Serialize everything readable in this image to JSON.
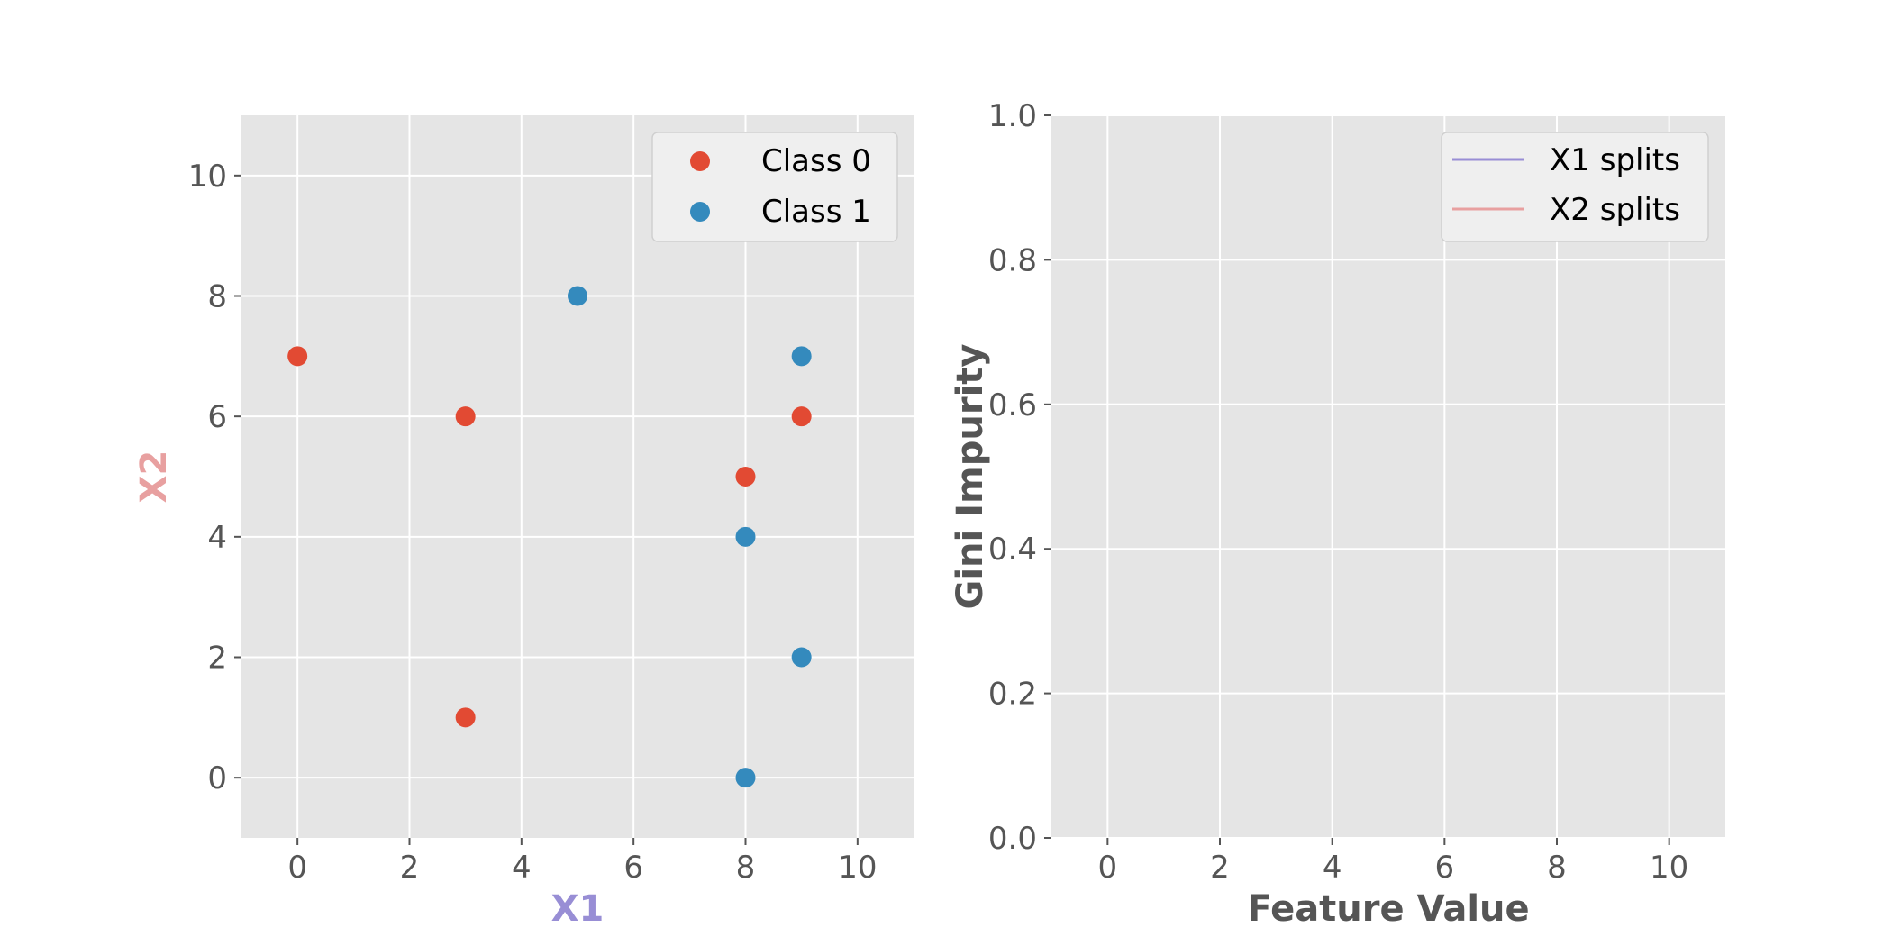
{
  "colors": {
    "class0": "#E24A33",
    "class1": "#348ABD",
    "x1": "#988ED5",
    "x2": "#E8A0A0",
    "axis_label": "#555555",
    "panel_bg": "#E5E5E5",
    "grid": "#FFFFFF"
  },
  "chart_data": [
    {
      "type": "scatter",
      "xlabel": "X1",
      "ylabel": "X2",
      "xlim": [
        -1,
        11
      ],
      "ylim": [
        -1,
        11
      ],
      "xticks": [
        0,
        2,
        4,
        6,
        8,
        10
      ],
      "yticks": [
        0,
        2,
        4,
        6,
        8,
        10
      ],
      "grid": true,
      "legend_position": "top-right",
      "series": [
        {
          "name": "Class 0",
          "color": "#E24A33",
          "points": [
            [
              0,
              7
            ],
            [
              3,
              6
            ],
            [
              3,
              1
            ],
            [
              8,
              5
            ],
            [
              9,
              6
            ]
          ]
        },
        {
          "name": "Class 1",
          "color": "#348ABD",
          "points": [
            [
              5,
              8
            ],
            [
              9,
              7
            ],
            [
              8,
              4
            ],
            [
              9,
              2
            ],
            [
              8,
              0
            ]
          ]
        }
      ]
    },
    {
      "type": "line",
      "xlabel": "Feature Value",
      "ylabel": "Gini Impurity",
      "xlim": [
        -1,
        11
      ],
      "ylim": [
        0,
        1
      ],
      "xticks": [
        0,
        2,
        4,
        6,
        8,
        10
      ],
      "yticks": [
        0.0,
        0.2,
        0.4,
        0.6,
        0.8,
        1.0
      ],
      "grid": true,
      "legend_position": "top-right",
      "series": [
        {
          "name": "X1 splits",
          "color": "#988ED5",
          "points": []
        },
        {
          "name": "X2 splits",
          "color": "#E8A0A0",
          "points": []
        }
      ]
    }
  ]
}
